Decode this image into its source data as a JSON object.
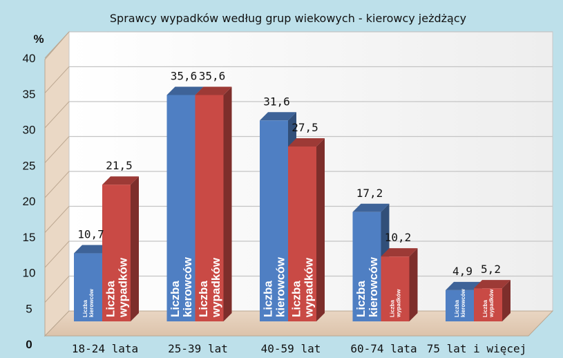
{
  "chart_data": {
    "type": "bar",
    "title": "Sprawcy wypadków według grup wiekowych - kierowcy jeżdżący",
    "ylabel": "%",
    "categories": [
      "18-24 lata",
      "25-39 lat",
      "40-59 lat",
      "60-74 lata",
      "75 lat i więcej"
    ],
    "series": [
      {
        "name": "Liczba kierowców",
        "values": [
          10.7,
          35.6,
          31.6,
          17.2,
          4.9
        ],
        "labels": [
          "10,7",
          "35,6",
          "31,6",
          "17,2",
          "4,9"
        ],
        "color": "#4f7fc3"
      },
      {
        "name": "Liczba wypadków",
        "values": [
          21.5,
          35.6,
          27.5,
          10.2,
          5.2
        ],
        "labels": [
          "21,5",
          "35,6",
          "27,5",
          "10,2",
          "5,2"
        ],
        "color": "#c94a45"
      }
    ],
    "ylim": [
      0,
      40
    ],
    "yticks": [
      "0",
      "5",
      "10",
      "15",
      "20",
      "25",
      "30",
      "35",
      "40"
    ],
    "grid": true,
    "inbar_label_lines": [
      [
        "Liczba",
        "kierowców"
      ],
      [
        "Liczba",
        "wypadków"
      ]
    ]
  }
}
